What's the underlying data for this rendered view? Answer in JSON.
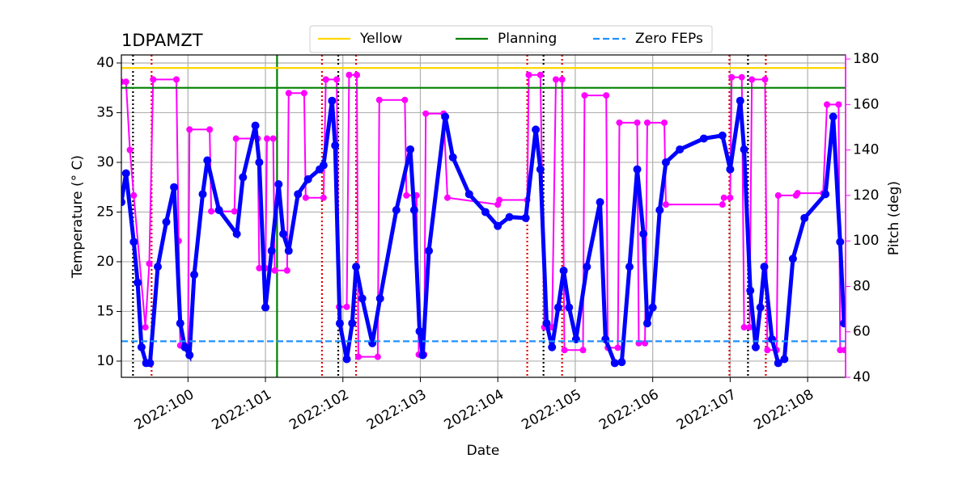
{
  "chart_data": {
    "type": "line",
    "title": "1DPAMZT",
    "x_label": "Date",
    "y_label": "Temperature (° C)",
    "y2_label": "Pitch (deg)",
    "xlim": [
      99.14,
      108.49
    ],
    "xticks": [
      {
        "value": 100,
        "label": "2022:100"
      },
      {
        "value": 101,
        "label": "2022:101"
      },
      {
        "value": 102,
        "label": "2022:102"
      },
      {
        "value": 103,
        "label": "2022:103"
      },
      {
        "value": 104,
        "label": "2022:104"
      },
      {
        "value": 105,
        "label": "2022:105"
      },
      {
        "value": 106,
        "label": "2022:106"
      },
      {
        "value": 107,
        "label": "2022:107"
      },
      {
        "value": 108,
        "label": "2022:108"
      }
    ],
    "ylim": [
      8.37,
      40.81
    ],
    "yticks": [
      10,
      15,
      20,
      25,
      30,
      35,
      40
    ],
    "y2lim": [
      40,
      181.8
    ],
    "y2ticks": [
      40,
      60,
      80,
      100,
      120,
      140,
      160,
      180
    ],
    "y2_color": "#ff00ff",
    "grid": true,
    "legend": "top",
    "reference_lines": [
      {
        "name": "Yellow",
        "color": "#ffd700",
        "value": 39.5,
        "dash": "solid"
      },
      {
        "name": "Planning",
        "color": "#008000",
        "value": 37.5,
        "dash": "solid"
      },
      {
        "name": "Zero FEPs",
        "color": "#1e90ff",
        "value": 12,
        "dash": "dashed"
      }
    ],
    "vertical_lines": [
      {
        "x": 99.29,
        "color": "#000000",
        "dash": "dotted"
      },
      {
        "x": 101.94,
        "color": "#000000",
        "dash": "dotted"
      },
      {
        "x": 104.59,
        "color": "#000000",
        "dash": "dotted"
      },
      {
        "x": 107.23,
        "color": "#000000",
        "dash": "dotted"
      },
      {
        "x": 99.53,
        "color": "#dd0000",
        "dash": "dotted"
      },
      {
        "x": 101.73,
        "color": "#dd0000",
        "dash": "dotted"
      },
      {
        "x": 102.17,
        "color": "#dd0000",
        "dash": "dotted"
      },
      {
        "x": 104.38,
        "color": "#dd0000",
        "dash": "dotted"
      },
      {
        "x": 104.83,
        "color": "#dd0000",
        "dash": "dotted"
      },
      {
        "x": 106.99,
        "color": "#dd0000",
        "dash": "dotted"
      },
      {
        "x": 107.46,
        "color": "#dd0000",
        "dash": "dotted"
      },
      {
        "x": 101.15,
        "color": "#008000",
        "dash": "solid"
      }
    ],
    "series": [
      {
        "axis": "y2",
        "color": "#ff00ff",
        "x": [
          99.14,
          99.2,
          99.25,
          99.3,
          99.45,
          99.5,
          99.55,
          99.85,
          99.88,
          99.9,
          100.0,
          100.02,
          100.28,
          100.3,
          100.6,
          100.62,
          100.9,
          100.92,
          101.0,
          101.02,
          101.1,
          101.12,
          101.28,
          101.3,
          101.5,
          101.52,
          101.75,
          101.78,
          101.92,
          101.95,
          102.05,
          102.08,
          102.18,
          102.2,
          102.45,
          102.47,
          102.8,
          102.82,
          102.95,
          102.98,
          103.05,
          103.07,
          103.3,
          103.35,
          104.0,
          104.02,
          104.38,
          104.4,
          104.55,
          104.6,
          104.7,
          104.75,
          104.83,
          104.86,
          105.1,
          105.12,
          105.4,
          105.42,
          105.55,
          105.57,
          105.8,
          105.82,
          105.9,
          105.93,
          106.15,
          106.17,
          106.9,
          106.92,
          107.0,
          107.02,
          107.15,
          107.18,
          107.25,
          107.28,
          107.45,
          107.48,
          107.6,
          107.62,
          107.85,
          107.87,
          108.2,
          108.25,
          108.4,
          108.42,
          108.48
        ],
        "values": [
          170,
          170,
          140,
          120,
          62,
          90,
          171,
          171,
          100,
          54,
          54,
          149,
          149,
          113,
          113,
          145,
          145,
          88,
          88,
          145,
          145,
          87,
          87,
          165,
          165,
          119,
          119,
          171,
          171,
          71,
          71,
          173,
          173,
          49,
          49,
          162,
          162,
          120,
          120,
          50,
          50,
          156,
          156,
          119,
          116,
          118,
          118,
          173,
          173,
          62,
          62,
          171,
          171,
          52,
          52,
          164,
          164,
          53,
          53,
          152,
          152,
          55,
          55,
          152,
          152,
          116,
          116,
          119,
          119,
          172,
          172,
          62,
          62,
          171,
          171,
          52,
          52,
          120,
          120,
          121,
          121,
          160,
          160,
          52,
          52
        ]
      },
      {
        "axis": "y",
        "color": "#0000ff",
        "x": [
          99.14,
          99.2,
          99.3,
          99.35,
          99.4,
          99.46,
          99.51,
          99.61,
          99.72,
          99.82,
          99.9,
          99.96,
          100.02,
          100.08,
          100.19,
          100.25,
          100.4,
          100.63,
          100.71,
          100.87,
          100.92,
          101.0,
          101.08,
          101.17,
          101.23,
          101.3,
          101.42,
          101.55,
          101.7,
          101.75,
          101.86,
          101.9,
          101.96,
          102.05,
          102.12,
          102.17,
          102.25,
          102.38,
          102.48,
          102.69,
          102.87,
          102.92,
          102.99,
          103.03,
          103.11,
          103.32,
          103.42,
          103.63,
          103.84,
          104.0,
          104.15,
          104.36,
          104.49,
          104.55,
          104.63,
          104.7,
          104.78,
          104.85,
          104.92,
          105.01,
          105.15,
          105.32,
          105.39,
          105.51,
          105.6,
          105.7,
          105.8,
          105.88,
          105.93,
          106.0,
          106.09,
          106.17,
          106.35,
          106.66,
          106.9,
          107.0,
          107.13,
          107.18,
          107.26,
          107.33,
          107.39,
          107.44,
          107.54,
          107.62,
          107.7,
          107.81,
          107.96,
          108.23,
          108.33,
          108.42,
          108.47
        ],
        "values": [
          26,
          28.9,
          22,
          17.9,
          11.4,
          9.8,
          9.8,
          19.5,
          24,
          27.5,
          13.8,
          11.4,
          10.6,
          18.7,
          26.8,
          30.2,
          25.2,
          22.8,
          28.5,
          33.7,
          30,
          15.4,
          21.1,
          27.8,
          22.8,
          21.1,
          26.8,
          28.3,
          29.3,
          29.7,
          36.2,
          31.7,
          13.8,
          10.2,
          13.8,
          19.5,
          16.3,
          11.8,
          16.3,
          25.2,
          31.3,
          25.2,
          13,
          10.6,
          21.1,
          34.6,
          30.5,
          26.8,
          25,
          23.6,
          24.5,
          24.4,
          33.3,
          29.3,
          13.8,
          11.4,
          15.4,
          19.1,
          15.4,
          12.2,
          19.5,
          26,
          12.2,
          9.8,
          9.9,
          19.5,
          29.3,
          22.8,
          13.8,
          15.4,
          25.2,
          30,
          31.3,
          32.4,
          32.7,
          29.3,
          36.2,
          31.3,
          17.1,
          11.4,
          15.4,
          19.5,
          12.2,
          9.8,
          10.2,
          20.3,
          24.4,
          26.8,
          34.6,
          22,
          13.8
        ]
      }
    ]
  }
}
